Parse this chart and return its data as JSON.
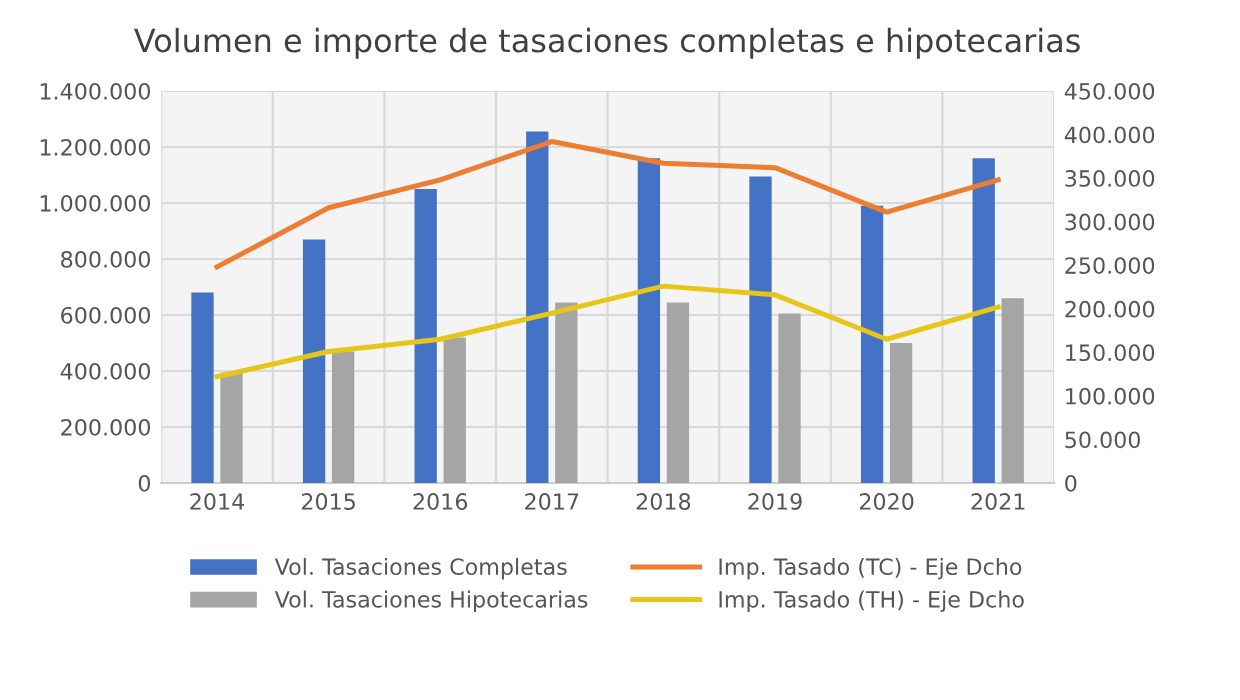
{
  "chart_data": {
    "type": "bar",
    "title": "Volumen e importe de tasaciones completas e hipotecarias",
    "categories": [
      "2014",
      "2015",
      "2016",
      "2017",
      "2018",
      "2019",
      "2020",
      "2021"
    ],
    "series": [
      {
        "name": "Vol. Tasaciones Completas",
        "color": "#4472c4",
        "values": [
          680000,
          870000,
          1050000,
          1255000,
          1160000,
          1095000,
          990000,
          1160000
        ]
      },
      {
        "name": "Vol. Tasaciones Hipotecarias",
        "color": "#a5a5a5",
        "values": [
          395000,
          470000,
          520000,
          645000,
          645000,
          605000,
          500000,
          660000
        ]
      },
      {
        "name": "Imp. Tasado (TC) - Eje Dcho",
        "type": "line",
        "axis": "y2",
        "color": "#ed7d31",
        "values": [
          248000,
          316000,
          348000,
          392000,
          367000,
          362000,
          311000,
          348000
        ]
      },
      {
        "name": "Imp. Tasado (TH) - Eje Dcho",
        "type": "line",
        "axis": "y2",
        "color": "#e6c619",
        "values": [
          122000,
          151000,
          165000,
          195000,
          226000,
          216000,
          165000,
          202000
        ]
      }
    ],
    "ylim": [
      0,
      1400000
    ],
    "yticks": [
      0,
      {
        "value": 200000,
        "label": "200.000"
      },
      {
        "value": 400000,
        "label": "400.000"
      },
      {
        "value": 600000,
        "label": "600.000"
      },
      {
        "value": 800000,
        "label": "800.000"
      },
      {
        "value": 1000000,
        "label": "1.000.000"
      },
      {
        "value": 1200000,
        "label": "1.200.000"
      },
      {
        "value": 1400000,
        "label": "1.400.000"
      }
    ],
    "y2lim": [
      0,
      450000
    ],
    "y2ticks": [
      0,
      {
        "value": 50000,
        "label": "50.000"
      },
      {
        "value": 100000,
        "label": "100.000"
      },
      {
        "value": 150000,
        "label": "150.000"
      },
      {
        "value": 200000,
        "label": "200.000"
      },
      {
        "value": 250000,
        "label": "250.000"
      },
      {
        "value": 300000,
        "label": "300.000"
      },
      {
        "value": 350000,
        "label": "350.000"
      },
      {
        "value": 400000,
        "label": "400.000"
      },
      {
        "value": 450000,
        "label": "450.000"
      }
    ],
    "grid": true,
    "legend": "bottom",
    "marker": "none",
    "line_style": "solid"
  }
}
